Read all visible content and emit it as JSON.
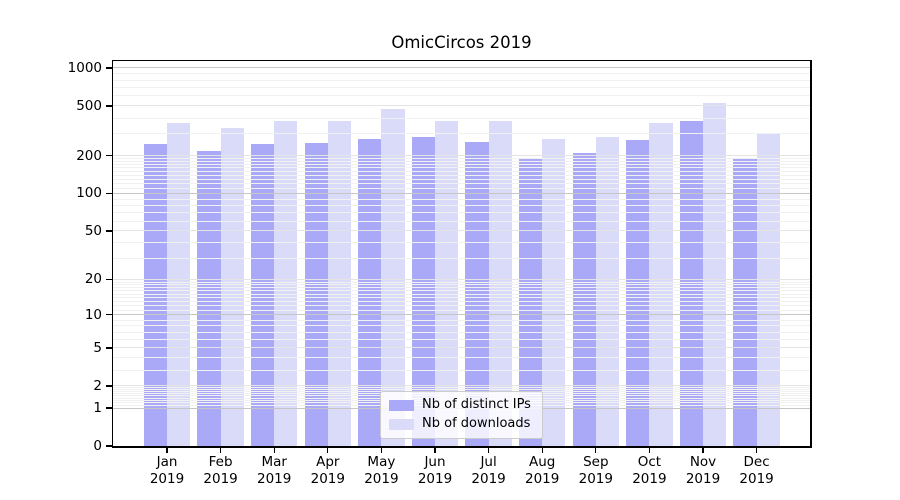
{
  "chart_data": {
    "type": "bar",
    "title": "OmicCircos 2019",
    "categories": [
      "Jan",
      "Feb",
      "Mar",
      "Apr",
      "May",
      "Jun",
      "Jul",
      "Aug",
      "Sep",
      "Oct",
      "Nov",
      "Dec"
    ],
    "category_year": "2019",
    "series": [
      {
        "name": "Nb of distinct IPs",
        "color": "#a9a9f8",
        "values": [
          248,
          219,
          250,
          254,
          270,
          281,
          258,
          193,
          209,
          268,
          379,
          192
        ]
      },
      {
        "name": "Nb of downloads",
        "color": "#dadaf9",
        "values": [
          364,
          332,
          382,
          378,
          471,
          382,
          381,
          270,
          281,
          367,
          530,
          296
        ]
      }
    ],
    "yscale": "log1p",
    "yticks": [
      0,
      1,
      2,
      5,
      10,
      20,
      50,
      100,
      200,
      500,
      1000
    ],
    "ylim": [
      0,
      1135
    ],
    "xlabel": "",
    "ylabel": "",
    "grid": "on",
    "grid_color_power10": "#c6c6c6",
    "grid_color_mid": "#e4e4e4",
    "grid_color_minor": "#f1f1f1",
    "legend_position": "lower center",
    "axis_color": "#000000",
    "background": "#ffffff"
  }
}
